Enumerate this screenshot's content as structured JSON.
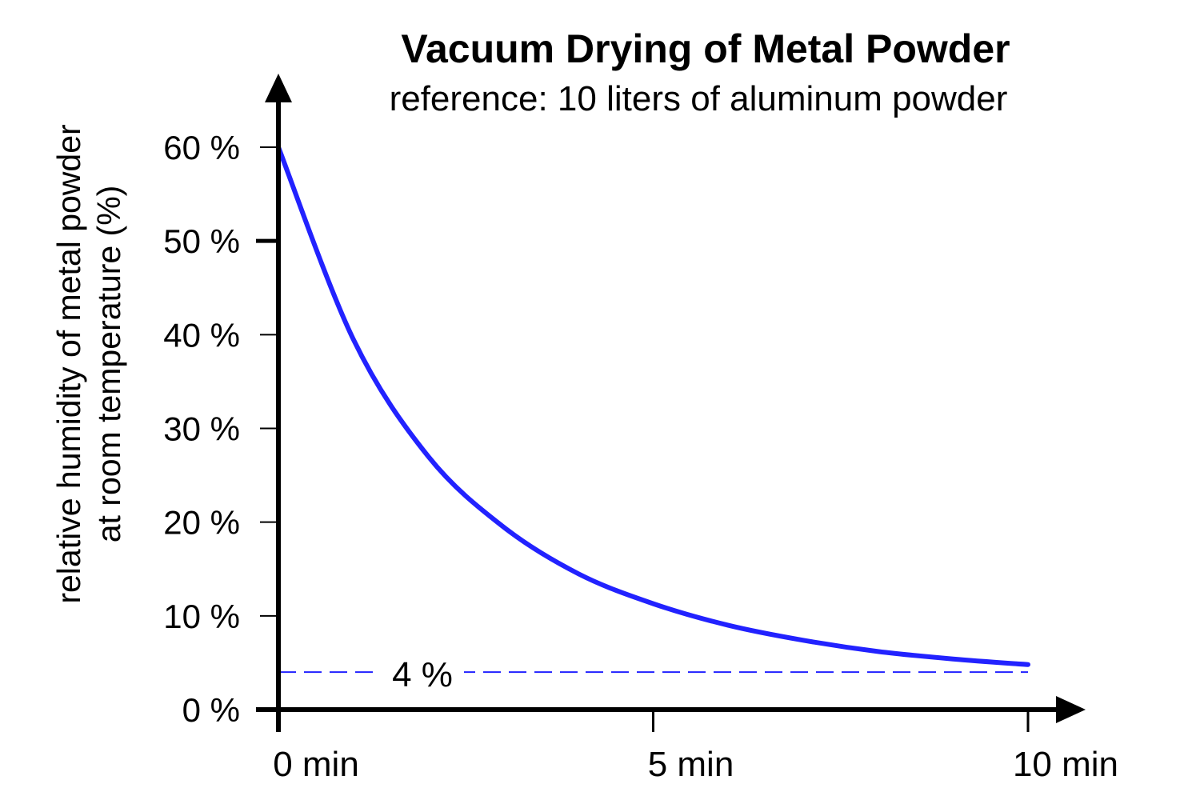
{
  "chart_data": {
    "type": "line",
    "title": "Vacuum Drying of Metal Powder",
    "subtitle": "reference: 10 liters of aluminum powder",
    "ylabel_lines": [
      "relative humidity of metal powder",
      "at room temperature (%)"
    ],
    "xlabel": "",
    "xlim": [
      0,
      10
    ],
    "ylim": [
      0,
      60
    ],
    "x_ticks": [
      {
        "value": 0,
        "label": "0 min"
      },
      {
        "value": 5,
        "label": "5 min"
      },
      {
        "value": 10,
        "label": "10 min"
      }
    ],
    "y_ticks": [
      {
        "value": 0,
        "label": "0 %"
      },
      {
        "value": 10,
        "label": "10 %"
      },
      {
        "value": 20,
        "label": "20 %"
      },
      {
        "value": 30,
        "label": "30 %"
      },
      {
        "value": 40,
        "label": "40 %"
      },
      {
        "value": 50,
        "label": "50 %"
      },
      {
        "value": 60,
        "label": "60 %"
      }
    ],
    "grid": false,
    "series": [
      {
        "color": "#2222ff",
        "x": [
          0,
          1,
          2,
          3,
          4,
          5,
          6,
          7,
          8,
          9,
          10
        ],
        "y": [
          60,
          39.5,
          27,
          19.5,
          14.5,
          11.3,
          9,
          7.4,
          6.2,
          5.4,
          4.8
        ]
      }
    ],
    "reference_line": {
      "value": 4,
      "label": "4 %",
      "style": "dashed",
      "color": "#2222ff"
    }
  }
}
